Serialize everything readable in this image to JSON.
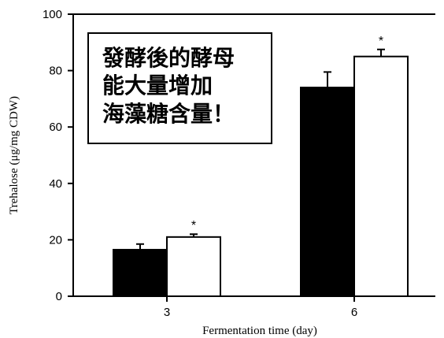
{
  "chart_data": {
    "type": "bar",
    "categories": [
      "3",
      "6"
    ],
    "series": [
      {
        "values": [
          16.5,
          74
        ],
        "errors": [
          2,
          5.5
        ],
        "color": "#000000",
        "significance": [
          "",
          ""
        ]
      },
      {
        "values": [
          21,
          85
        ],
        "errors": [
          1,
          2.5
        ],
        "color": "#ffffff",
        "significance": [
          "*",
          "*"
        ]
      }
    ],
    "xlabel": "Fermentation time (day)",
    "ylabel": "Trehalose (μg/mg CDW)",
    "ylim": [
      0,
      100
    ],
    "yticks": [
      0,
      20,
      40,
      60,
      80,
      100
    ],
    "grid": false,
    "legend": "none",
    "annotation": {
      "lines": [
        "發酵後的酵母",
        "能大量增加",
        "海藻糖含量！"
      ]
    }
  }
}
